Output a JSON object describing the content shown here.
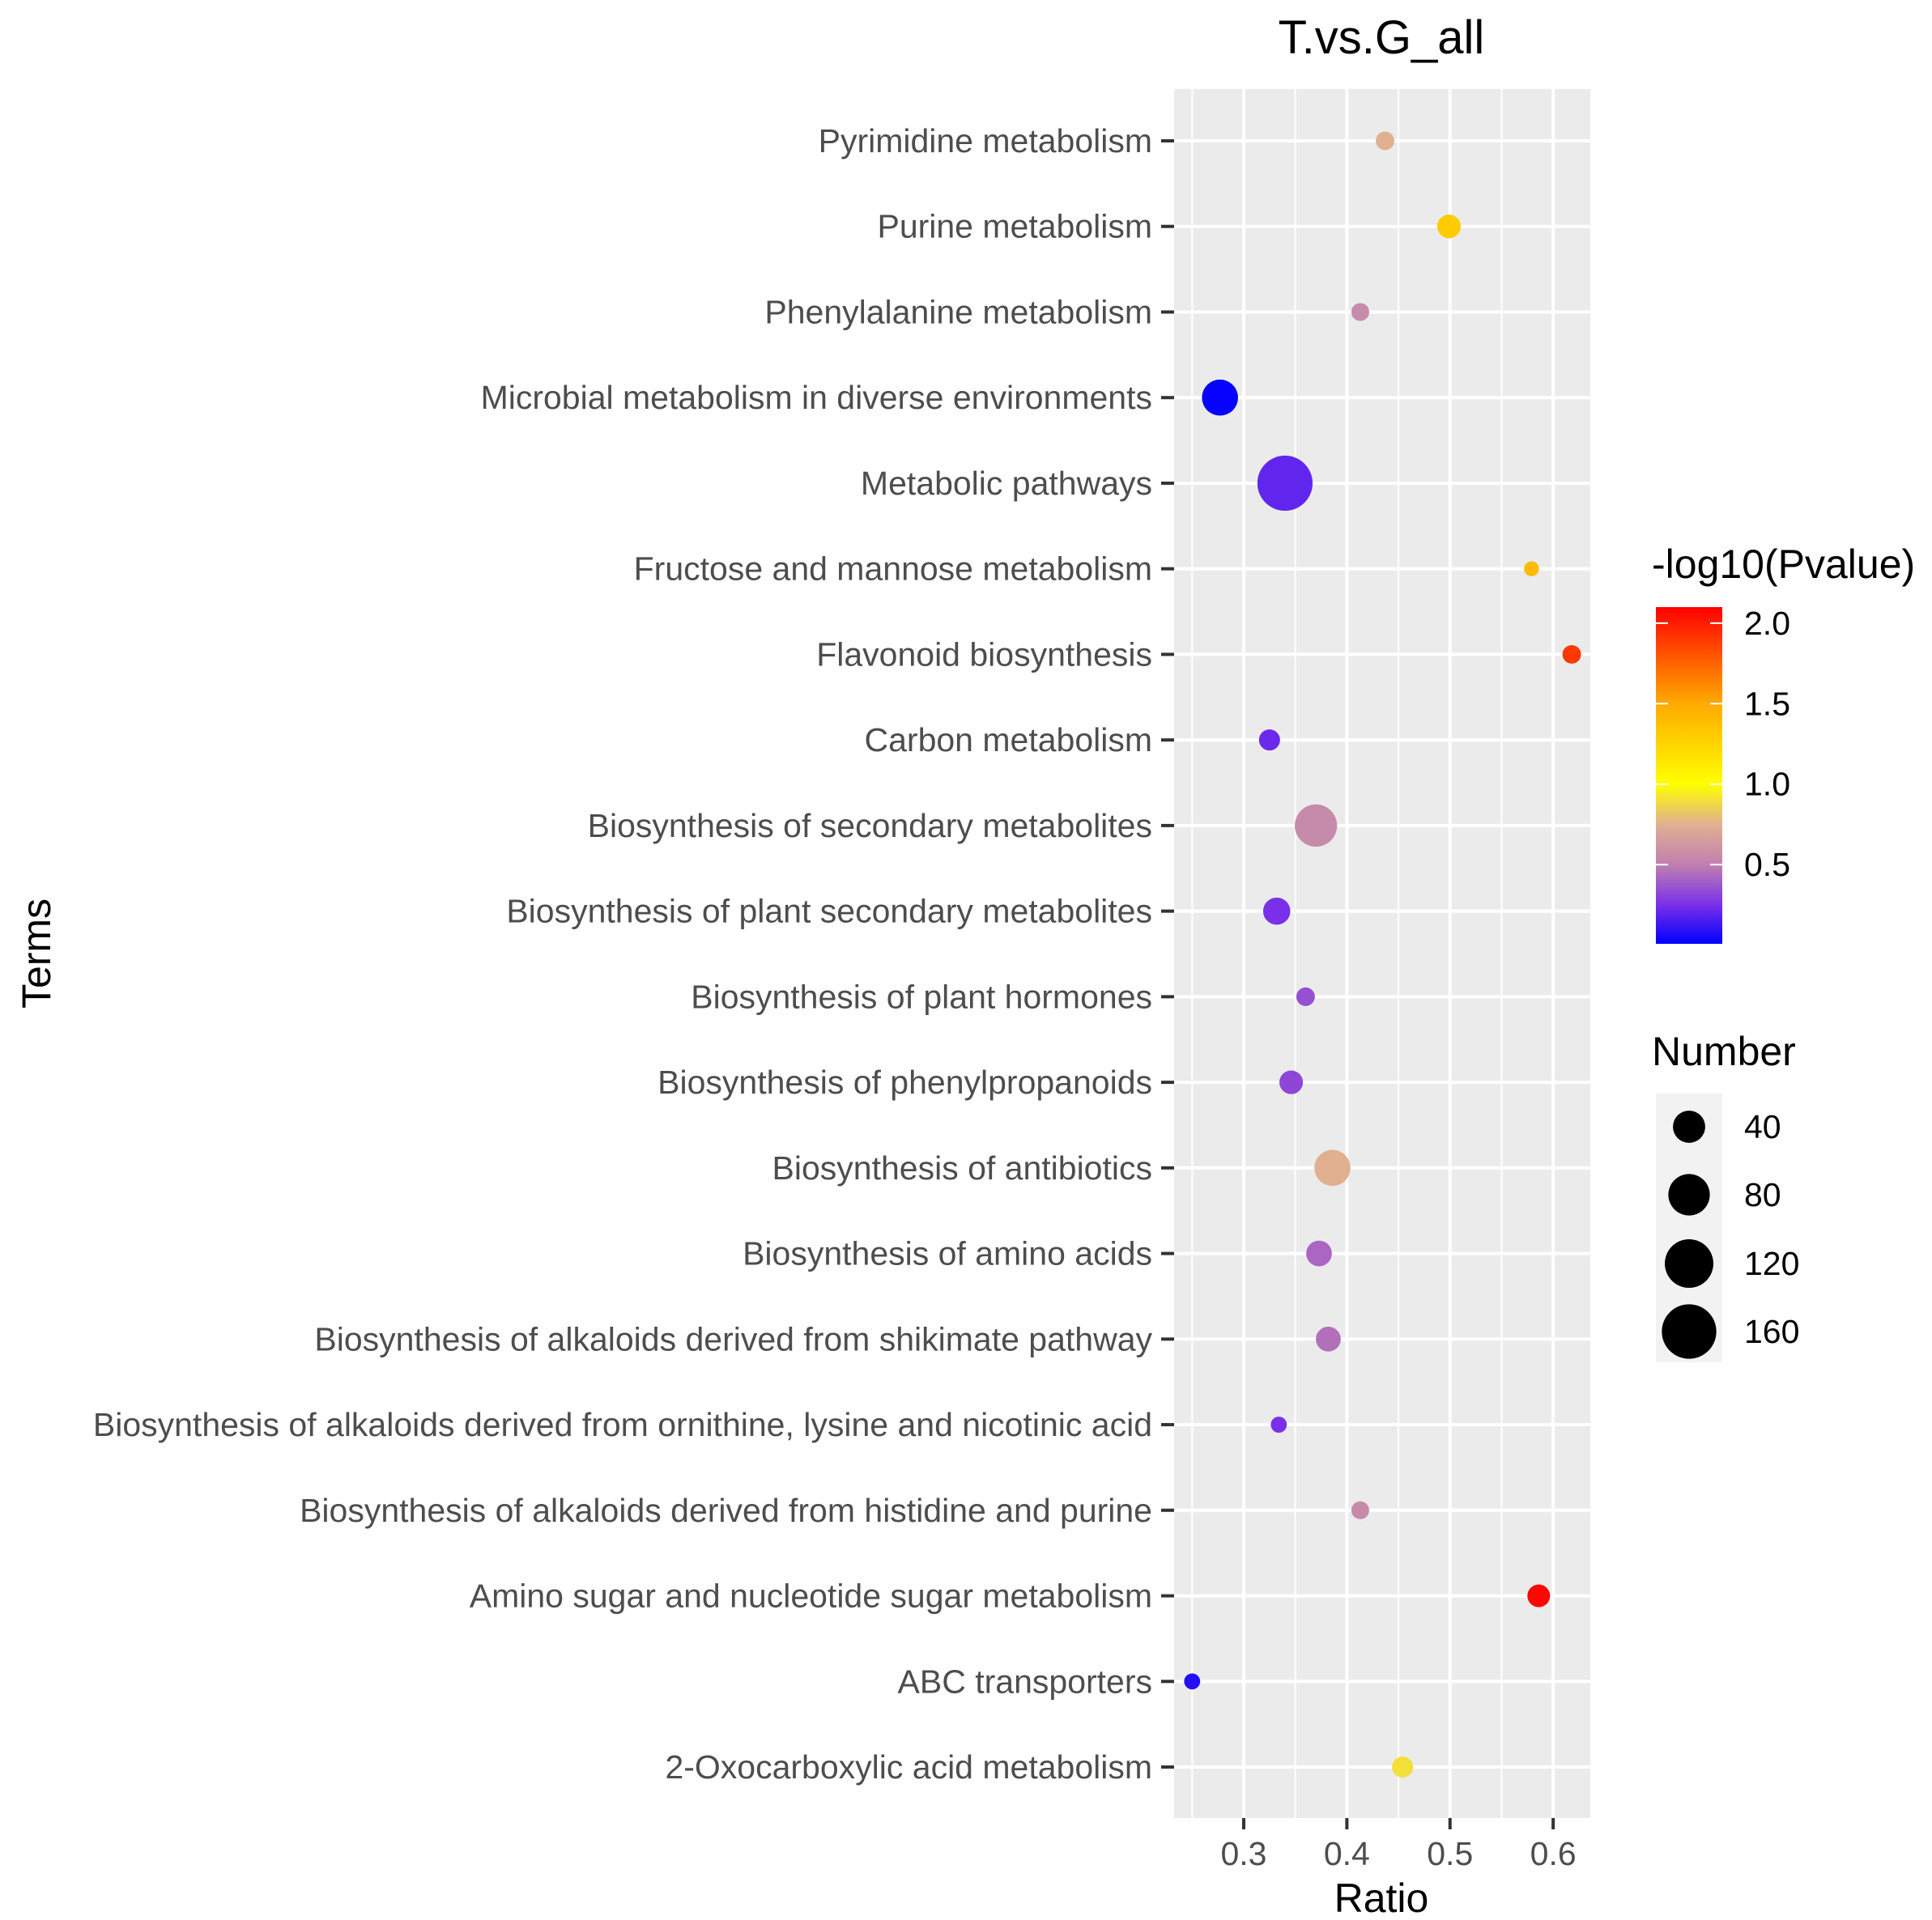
{
  "chart_data": {
    "type": "scatter",
    "title": "T.vs.G_all",
    "xlabel": "Ratio",
    "ylabel": "Terms",
    "xlim": [
      0.2325,
      0.636
    ],
    "x_ticks": [
      0.3,
      0.4,
      0.5,
      0.6
    ],
    "x_tick_labels": [
      "0.3",
      "0.4",
      "0.5",
      "0.6"
    ],
    "grid": true,
    "color_legend": {
      "title": "-log10(Pvalue)",
      "range": [
        0.008,
        2.1
      ],
      "ticks": [
        0.5,
        1.0,
        1.5,
        2.0
      ],
      "tick_labels": [
        "0.5",
        "1.0",
        "1.5",
        "2.0"
      ],
      "gradient": [
        {
          "value": 0.008,
          "color": "#0000ff"
        },
        {
          "value": 0.25,
          "color": "#7a30e8"
        },
        {
          "value": 0.5,
          "color": "#c080b0"
        },
        {
          "value": 0.75,
          "color": "#e0b090"
        },
        {
          "value": 1.0,
          "color": "#ffff00"
        },
        {
          "value": 1.5,
          "color": "#ffaa00"
        },
        {
          "value": 2.1,
          "color": "#ff0000"
        }
      ],
      "placement": "right"
    },
    "size_legend": {
      "title": "Number",
      "values": [
        40,
        80,
        120,
        160
      ],
      "labels": [
        "40",
        "80",
        "120",
        "160"
      ],
      "placement": "right"
    },
    "points": [
      {
        "term": "Pyrimidine metabolism",
        "ratio": 0.437,
        "neglog10p": 0.75,
        "number": 6
      },
      {
        "term": "Purine metabolism",
        "ratio": 0.499,
        "neglog10p": 1.3,
        "number": 15
      },
      {
        "term": "Phenylalanine metabolism",
        "ratio": 0.413,
        "neglog10p": 0.55,
        "number": 5
      },
      {
        "term": "Microbial metabolism in diverse environments",
        "ratio": 0.277,
        "neglog10p": 0.02,
        "number": 55
      },
      {
        "term": "Metabolic pathways",
        "ratio": 0.34,
        "neglog10p": 0.2,
        "number": 165
      },
      {
        "term": "Fructose and mannose metabolism",
        "ratio": 0.579,
        "neglog10p": 1.4,
        "number": 2
      },
      {
        "term": "Flavonoid biosynthesis",
        "ratio": 0.618,
        "neglog10p": 1.9,
        "number": 6
      },
      {
        "term": "Carbon metabolism",
        "ratio": 0.325,
        "neglog10p": 0.22,
        "number": 10
      },
      {
        "term": "Biosynthesis of secondary metabolites",
        "ratio": 0.37,
        "neglog10p": 0.55,
        "number": 84
      },
      {
        "term": "Biosynthesis of plant secondary metabolites",
        "ratio": 0.332,
        "neglog10p": 0.25,
        "number": 24
      },
      {
        "term": "Biosynthesis of plant hormones",
        "ratio": 0.36,
        "neglog10p": 0.35,
        "number": 6
      },
      {
        "term": "Biosynthesis of phenylpropanoids",
        "ratio": 0.346,
        "neglog10p": 0.32,
        "number": 15
      },
      {
        "term": "Biosynthesis of antibiotics",
        "ratio": 0.386,
        "neglog10p": 0.75,
        "number": 55
      },
      {
        "term": "Biosynthesis of amino acids",
        "ratio": 0.373,
        "neglog10p": 0.42,
        "number": 20
      },
      {
        "term": "Biosynthesis of alkaloids derived from shikimate pathway",
        "ratio": 0.382,
        "neglog10p": 0.45,
        "number": 18
      },
      {
        "term": "Biosynthesis of alkaloids derived from ornithine, lysine and nicotinic acid",
        "ratio": 0.334,
        "neglog10p": 0.25,
        "number": 3
      },
      {
        "term": "Biosynthesis of alkaloids derived from histidine and purine",
        "ratio": 0.413,
        "neglog10p": 0.55,
        "number": 5
      },
      {
        "term": "Amino sugar and nucleotide sugar metabolism",
        "ratio": 0.586,
        "neglog10p": 2.08,
        "number": 13
      },
      {
        "term": "ABC transporters",
        "ratio": 0.25,
        "neglog10p": 0.08,
        "number": 3
      },
      {
        "term": "2-Oxocarboxylic acid metabolism",
        "ratio": 0.454,
        "neglog10p": 0.9,
        "number": 10
      }
    ]
  }
}
